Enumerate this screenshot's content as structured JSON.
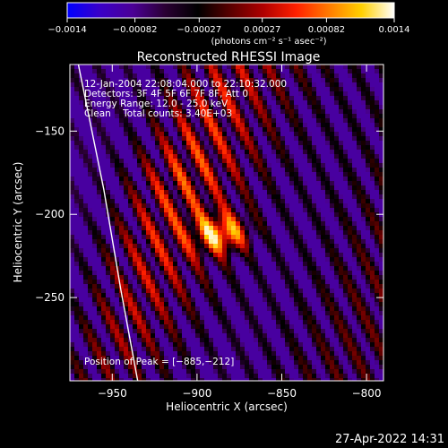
{
  "chart_data": {
    "type": "heatmap",
    "title": "Reconstructed RHESSI Image",
    "xlabel": "Heliocentric X (arcsec)",
    "ylabel": "Heliocentric Y (arcsec)",
    "xlim": [
      -975,
      -790
    ],
    "ylim": [
      -300,
      -110
    ],
    "x_ticks": [
      {
        "value": -950,
        "label": "−950"
      },
      {
        "value": -900,
        "label": "−900"
      },
      {
        "value": -850,
        "label": "−850"
      },
      {
        "value": -800,
        "label": "−800"
      }
    ],
    "y_ticks": [
      {
        "value": -150,
        "label": "−150"
      },
      {
        "value": -200,
        "label": "−200"
      },
      {
        "value": -250,
        "label": "−250"
      }
    ],
    "colorbar": {
      "min": -0.0014,
      "max": 0.0014,
      "unit_label": "(photons cm⁻² s⁻¹ asec⁻²)",
      "ticks": [
        {
          "value": -0.0014,
          "label": "−0.0014"
        },
        {
          "value": -0.00082,
          "label": "−0.00082"
        },
        {
          "value": -0.00027,
          "label": "−0.00027"
        },
        {
          "value": 0.00027,
          "label": "0.00027"
        },
        {
          "value": 0.00082,
          "label": "0.00082"
        },
        {
          "value": 0.0014,
          "label": "0.0014"
        }
      ],
      "colors": [
        "#0000ff",
        "#3a00c8",
        "#4b0096",
        "#2a0033",
        "#000000",
        "#5a0000",
        "#b00000",
        "#ff2000",
        "#ff7a00",
        "#ffd000",
        "#ffffff"
      ]
    },
    "info_lines": [
      "12-Jan-2004 22:08:04.000 to 22:10:32.000",
      "Detectors: 3F 4F 5F 6F 7F 8F, Att 0",
      "Energy Range: 12.0 - 25.0 keV",
      "Clean    Total counts: 3.40E+03"
    ],
    "peak": {
      "x": -885,
      "y": -212
    },
    "peak_label": "Position of Peak = [−885,−212]",
    "limb_curve": [
      [
        -970,
        -110
      ],
      [
        -955,
        -185
      ],
      [
        -945,
        -245
      ],
      [
        -935,
        -300
      ]
    ]
  },
  "timestamp": "27-Apr-2022 14:31"
}
